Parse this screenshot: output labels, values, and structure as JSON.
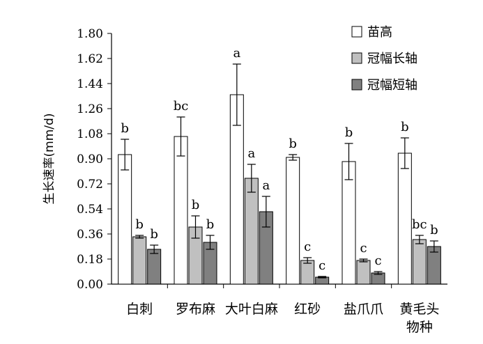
{
  "chart_data": {
    "type": "bar",
    "title": "",
    "xlabel": "物种",
    "ylabel": "生长速率(mm/d)",
    "ylim": [
      0,
      1.8
    ],
    "yticks": [
      "1.80",
      "1.62",
      "1.44",
      "1.26",
      "1.08",
      "0.90",
      "0.72",
      "0.54",
      "0.36",
      "0.18",
      "0.00"
    ],
    "grid": false,
    "legend_position": "top-right",
    "categories": [
      "白刺",
      "罗布麻",
      "大叶白麻",
      "红砂",
      "盐爪爪",
      "黄毛头"
    ],
    "series": [
      {
        "name": "苗高",
        "color": "#ffffff",
        "values": [
          0.93,
          1.06,
          1.36,
          0.91,
          0.88,
          0.94
        ],
        "errors": [
          0.11,
          0.14,
          0.22,
          0.02,
          0.13,
          0.11
        ],
        "labels": [
          "b",
          "bc",
          "a",
          "b",
          "b",
          "b"
        ]
      },
      {
        "name": "冠幅长轴",
        "color": "#c0c0c0",
        "values": [
          0.34,
          0.41,
          0.76,
          0.17,
          0.17,
          0.32
        ],
        "errors": [
          0.01,
          0.08,
          0.1,
          0.02,
          0.01,
          0.03
        ],
        "labels": [
          "b",
          "b",
          "a",
          "c",
          "c",
          "bc"
        ]
      },
      {
        "name": "冠幅短轴",
        "color": "#808080",
        "values": [
          0.25,
          0.3,
          0.52,
          0.05,
          0.08,
          0.27
        ],
        "errors": [
          0.03,
          0.05,
          0.11,
          0.005,
          0.01,
          0.04
        ],
        "labels": [
          "b",
          "b",
          "a",
          "c",
          "c",
          "b"
        ]
      }
    ]
  }
}
